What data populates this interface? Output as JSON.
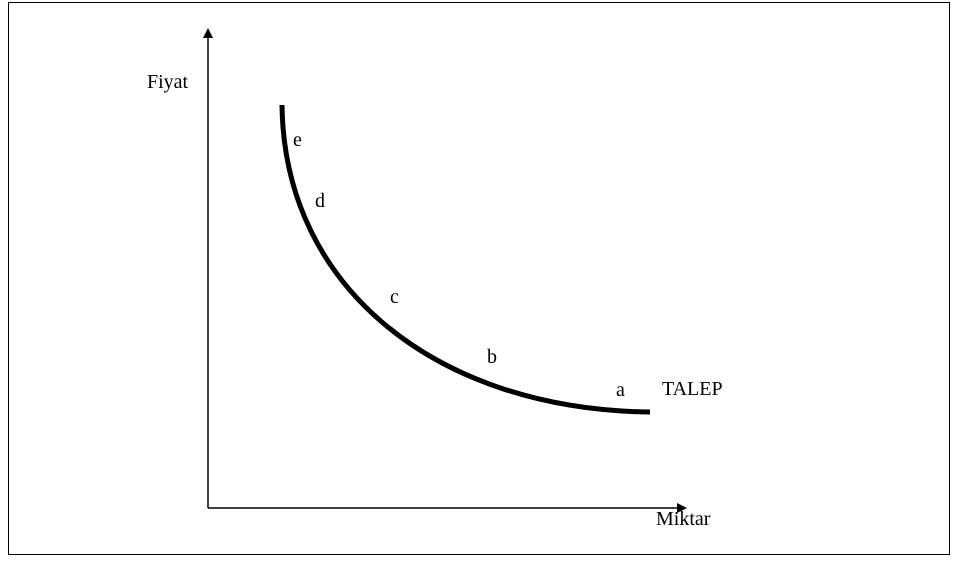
{
  "axes": {
    "y_label": "Fiyat",
    "x_label": "Miktar"
  },
  "curve": {
    "label": "TALEP",
    "points": [
      "a",
      "b",
      "c",
      "d",
      "e"
    ]
  }
}
